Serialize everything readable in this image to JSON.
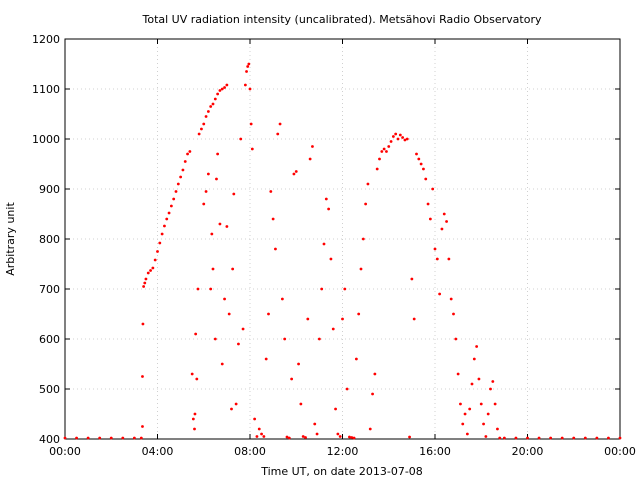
{
  "chart_data": {
    "type": "scatter",
    "title": "Total UV radiation intensity (uncalibrated). Metsähovi Radio Observatory",
    "xlabel": "Time UT, on date 2013-07-08",
    "ylabel": "Arbitrary unit",
    "xlim": [
      0,
      24
    ],
    "ylim": [
      400,
      1200
    ],
    "grid": true,
    "marker_color": "#ff0000",
    "x_tick_labels": [
      "00:00",
      "04:00",
      "08:00",
      "12:00",
      "16:00",
      "20:00",
      "00:00"
    ],
    "y_tick_labels": [
      "400",
      "500",
      "600",
      "700",
      "800",
      "900",
      "1000",
      "1100",
      "1200"
    ],
    "series": [
      {
        "points": [
          [
            0.0,
            401
          ],
          [
            0.5,
            401
          ],
          [
            1.0,
            401
          ],
          [
            1.5,
            401
          ],
          [
            2.0,
            401
          ],
          [
            2.5,
            401
          ],
          [
            3.0,
            401
          ],
          [
            3.3,
            401
          ],
          [
            3.35,
            425
          ],
          [
            3.35,
            525
          ],
          [
            3.37,
            630
          ],
          [
            3.4,
            705
          ],
          [
            3.45,
            712
          ],
          [
            3.5,
            720
          ],
          [
            3.6,
            732
          ],
          [
            3.7,
            737
          ],
          [
            3.8,
            742
          ],
          [
            3.9,
            758
          ],
          [
            4.0,
            775
          ],
          [
            4.1,
            792
          ],
          [
            4.2,
            810
          ],
          [
            4.3,
            826
          ],
          [
            4.4,
            840
          ],
          [
            4.5,
            852
          ],
          [
            4.6,
            866
          ],
          [
            4.7,
            880
          ],
          [
            4.8,
            895
          ],
          [
            4.9,
            910
          ],
          [
            5.0,
            924
          ],
          [
            5.1,
            938
          ],
          [
            5.2,
            955
          ],
          [
            5.3,
            970
          ],
          [
            5.4,
            975
          ],
          [
            5.5,
            530
          ],
          [
            5.55,
            440
          ],
          [
            5.6,
            420
          ],
          [
            5.62,
            450
          ],
          [
            5.65,
            610
          ],
          [
            5.7,
            520
          ],
          [
            5.75,
            700
          ],
          [
            5.8,
            1010
          ],
          [
            5.9,
            1020
          ],
          [
            6.0,
            1030
          ],
          [
            6.1,
            1045
          ],
          [
            6.2,
            1055
          ],
          [
            6.3,
            1065
          ],
          [
            6.4,
            1070
          ],
          [
            6.5,
            1080
          ],
          [
            6.6,
            1090
          ],
          [
            6.7,
            1097
          ],
          [
            6.8,
            1100
          ],
          [
            6.9,
            1103
          ],
          [
            7.0,
            1108
          ],
          [
            6.0,
            870
          ],
          [
            6.1,
            895
          ],
          [
            6.2,
            930
          ],
          [
            6.3,
            700
          ],
          [
            6.35,
            810
          ],
          [
            6.4,
            740
          ],
          [
            6.5,
            600
          ],
          [
            6.55,
            920
          ],
          [
            6.6,
            970
          ],
          [
            6.7,
            830
          ],
          [
            6.8,
            550
          ],
          [
            6.9,
            680
          ],
          [
            7.0,
            825
          ],
          [
            7.1,
            650
          ],
          [
            7.2,
            460
          ],
          [
            7.25,
            740
          ],
          [
            7.3,
            890
          ],
          [
            7.4,
            470
          ],
          [
            7.5,
            590
          ],
          [
            7.6,
            1000
          ],
          [
            7.7,
            620
          ],
          [
            7.8,
            1108
          ],
          [
            7.85,
            1135
          ],
          [
            7.9,
            1145
          ],
          [
            7.95,
            1150
          ],
          [
            8.0,
            1100
          ],
          [
            8.05,
            1030
          ],
          [
            8.1,
            980
          ],
          [
            8.2,
            440
          ],
          [
            8.3,
            405
          ],
          [
            8.4,
            420
          ],
          [
            8.5,
            410
          ],
          [
            8.6,
            405
          ],
          [
            8.7,
            560
          ],
          [
            8.8,
            650
          ],
          [
            8.9,
            895
          ],
          [
            9.0,
            840
          ],
          [
            9.1,
            780
          ],
          [
            9.2,
            1010
          ],
          [
            9.3,
            1030
          ],
          [
            9.4,
            680
          ],
          [
            9.5,
            600
          ],
          [
            9.6,
            404
          ],
          [
            9.7,
            402
          ],
          [
            9.8,
            520
          ],
          [
            9.9,
            930
          ],
          [
            10.0,
            935
          ],
          [
            10.1,
            550
          ],
          [
            10.2,
            470
          ],
          [
            10.3,
            405
          ],
          [
            10.4,
            403
          ],
          [
            10.5,
            640
          ],
          [
            10.6,
            960
          ],
          [
            10.7,
            985
          ],
          [
            10.8,
            430
          ],
          [
            10.9,
            410
          ],
          [
            11.0,
            600
          ],
          [
            11.1,
            700
          ],
          [
            11.2,
            790
          ],
          [
            11.3,
            880
          ],
          [
            11.4,
            860
          ],
          [
            11.5,
            760
          ],
          [
            11.6,
            620
          ],
          [
            11.7,
            460
          ],
          [
            11.8,
            410
          ],
          [
            11.9,
            405
          ],
          [
            12.0,
            640
          ],
          [
            12.1,
            700
          ],
          [
            12.2,
            500
          ],
          [
            12.3,
            404
          ],
          [
            12.4,
            403
          ],
          [
            12.5,
            402
          ],
          [
            12.6,
            560
          ],
          [
            12.7,
            650
          ],
          [
            12.8,
            740
          ],
          [
            12.9,
            800
          ],
          [
            13.0,
            870
          ],
          [
            13.1,
            910
          ],
          [
            13.2,
            420
          ],
          [
            13.3,
            490
          ],
          [
            13.4,
            530
          ],
          [
            13.5,
            940
          ],
          [
            13.6,
            960
          ],
          [
            13.7,
            975
          ],
          [
            13.8,
            980
          ],
          [
            13.9,
            975
          ],
          [
            14.0,
            985
          ],
          [
            14.1,
            995
          ],
          [
            14.2,
            1005
          ],
          [
            14.3,
            1010
          ],
          [
            14.4,
            1000
          ],
          [
            14.5,
            1008
          ],
          [
            14.6,
            1003
          ],
          [
            14.7,
            998
          ],
          [
            14.8,
            1000
          ],
          [
            14.9,
            404
          ],
          [
            15.0,
            720
          ],
          [
            15.1,
            640
          ],
          [
            15.2,
            970
          ],
          [
            15.3,
            960
          ],
          [
            15.4,
            950
          ],
          [
            15.5,
            940
          ],
          [
            15.6,
            920
          ],
          [
            15.7,
            870
          ],
          [
            15.8,
            840
          ],
          [
            15.9,
            900
          ],
          [
            16.0,
            780
          ],
          [
            16.1,
            760
          ],
          [
            16.2,
            690
          ],
          [
            16.3,
            820
          ],
          [
            16.4,
            850
          ],
          [
            16.5,
            835
          ],
          [
            16.6,
            760
          ],
          [
            16.7,
            680
          ],
          [
            16.8,
            650
          ],
          [
            16.9,
            600
          ],
          [
            17.0,
            530
          ],
          [
            17.1,
            470
          ],
          [
            17.2,
            430
          ],
          [
            17.3,
            450
          ],
          [
            17.4,
            410
          ],
          [
            17.5,
            460
          ],
          [
            17.6,
            510
          ],
          [
            17.7,
            560
          ],
          [
            17.8,
            585
          ],
          [
            17.9,
            520
          ],
          [
            18.0,
            470
          ],
          [
            18.1,
            430
          ],
          [
            18.2,
            405
          ],
          [
            18.3,
            450
          ],
          [
            18.4,
            500
          ],
          [
            18.5,
            515
          ],
          [
            18.6,
            470
          ],
          [
            18.7,
            420
          ],
          [
            18.8,
            402
          ],
          [
            19.0,
            401
          ],
          [
            19.5,
            401
          ],
          [
            20.0,
            401
          ],
          [
            20.5,
            401
          ],
          [
            21.0,
            401
          ],
          [
            21.5,
            401
          ],
          [
            22.0,
            401
          ],
          [
            22.5,
            401
          ],
          [
            23.0,
            401
          ],
          [
            23.5,
            401
          ],
          [
            24.0,
            401
          ]
        ]
      }
    ]
  }
}
